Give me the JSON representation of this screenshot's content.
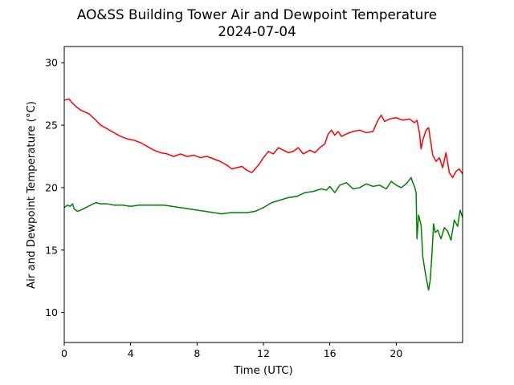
{
  "chart_data": {
    "type": "line",
    "title_line1": "AO&SS Building Tower Air and Dewpoint Temperature",
    "title_line2": "2024-07-04",
    "xlabel": "Time (UTC)",
    "ylabel": "Air and Dewpoint Temperature (°C)",
    "xlim": [
      0,
      24
    ],
    "ylim": [
      7.6,
      31.3
    ],
    "xticks": [
      0,
      4,
      8,
      12,
      16,
      20
    ],
    "yticks": [
      10,
      15,
      20,
      25,
      30
    ],
    "grid": false,
    "legend": "none",
    "series": [
      {
        "color": "#ff0000",
        "x": [
          0.0,
          0.3,
          0.4,
          0.7,
          1.0,
          1.5,
          1.9,
          2.2,
          2.6,
          3.0,
          3.4,
          3.8,
          4.2,
          4.6,
          5.0,
          5.4,
          5.8,
          6.2,
          6.6,
          7.0,
          7.4,
          7.8,
          8.2,
          8.6,
          9.0,
          9.4,
          9.8,
          10.1,
          10.4,
          10.7,
          11.0,
          11.3,
          11.7,
          12.0,
          12.3,
          12.6,
          12.9,
          13.2,
          13.5,
          13.8,
          14.1,
          14.4,
          14.8,
          15.1,
          15.4,
          15.7,
          15.9,
          16.1,
          16.3,
          16.5,
          16.7,
          17.0,
          17.4,
          17.8,
          18.2,
          18.6,
          18.9,
          19.1,
          19.3,
          19.6,
          20.0,
          20.4,
          20.8,
          21.1,
          21.25,
          21.4,
          21.5,
          21.6,
          21.8,
          21.95,
          22.1,
          22.2,
          22.4,
          22.6,
          22.8,
          23.0,
          23.2,
          23.4,
          23.6,
          23.8,
          24.0
        ],
        "y": [
          27.0,
          27.1,
          26.9,
          26.5,
          26.2,
          25.9,
          25.4,
          25.0,
          24.7,
          24.4,
          24.1,
          23.9,
          23.8,
          23.6,
          23.3,
          23.0,
          22.8,
          22.7,
          22.5,
          22.7,
          22.5,
          22.6,
          22.4,
          22.5,
          22.3,
          22.1,
          21.8,
          21.5,
          21.6,
          21.7,
          21.4,
          21.2,
          21.8,
          22.4,
          22.9,
          22.7,
          23.2,
          23.0,
          22.8,
          22.9,
          23.2,
          22.7,
          23.0,
          22.8,
          23.2,
          23.5,
          24.3,
          24.6,
          24.2,
          24.5,
          24.1,
          24.3,
          24.5,
          24.6,
          24.4,
          24.5,
          25.4,
          25.8,
          25.3,
          25.5,
          25.6,
          25.4,
          25.5,
          25.2,
          25.4,
          24.4,
          23.1,
          23.8,
          24.6,
          24.8,
          23.5,
          22.6,
          22.1,
          22.4,
          21.6,
          22.8,
          21.2,
          20.8,
          21.3,
          21.5,
          21.1
        ]
      },
      {
        "color": "#008000",
        "x": [
          0.0,
          0.2,
          0.35,
          0.5,
          0.6,
          0.8,
          1.0,
          1.3,
          1.6,
          1.9,
          2.2,
          2.6,
          3.0,
          3.5,
          4.0,
          4.5,
          5.0,
          5.5,
          6.0,
          6.5,
          7.0,
          7.5,
          8.0,
          8.5,
          9.0,
          9.5,
          10.0,
          10.5,
          11.0,
          11.5,
          12.0,
          12.5,
          13.0,
          13.5,
          14.0,
          14.5,
          15.0,
          15.5,
          15.8,
          16.0,
          16.3,
          16.6,
          17.0,
          17.4,
          17.8,
          18.2,
          18.6,
          19.0,
          19.4,
          19.7,
          20.0,
          20.3,
          20.6,
          20.9,
          21.0,
          21.1,
          21.2,
          21.25,
          21.35,
          21.5,
          21.6,
          21.75,
          21.85,
          21.95,
          22.05,
          22.15,
          22.25,
          22.35,
          22.5,
          22.7,
          22.9,
          23.1,
          23.3,
          23.5,
          23.7,
          23.85,
          24.0
        ],
        "y": [
          18.4,
          18.6,
          18.5,
          18.7,
          18.3,
          18.1,
          18.2,
          18.4,
          18.6,
          18.8,
          18.7,
          18.7,
          18.6,
          18.6,
          18.5,
          18.6,
          18.6,
          18.6,
          18.6,
          18.5,
          18.4,
          18.3,
          18.2,
          18.1,
          18.0,
          17.9,
          18.0,
          18.0,
          18.0,
          18.1,
          18.4,
          18.8,
          19.0,
          19.2,
          19.3,
          19.6,
          19.7,
          19.9,
          19.8,
          20.1,
          19.6,
          20.2,
          20.4,
          19.9,
          20.0,
          20.3,
          20.1,
          20.2,
          19.9,
          20.5,
          20.2,
          20.0,
          20.3,
          20.8,
          20.4,
          20.1,
          19.6,
          15.9,
          17.8,
          17.0,
          14.5,
          13.2,
          12.5,
          11.8,
          12.6,
          14.6,
          17.1,
          16.4,
          16.6,
          15.9,
          16.8,
          16.5,
          15.8,
          17.4,
          16.9,
          18.2,
          17.6
        ]
      }
    ]
  }
}
